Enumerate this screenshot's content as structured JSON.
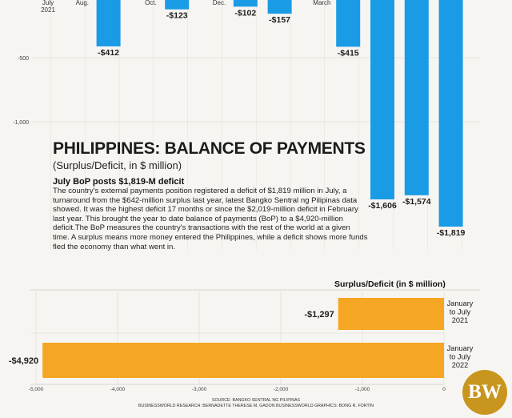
{
  "title": "PHILIPPINES: BALANCE OF PAYMENTS",
  "subtitle": "(Surplus/Deficit, in $ million)",
  "headline": "July BoP posts $1,819-M deficit",
  "body": "The country's external payments position registered a deficit of $1,819 million in July, a turnaround from the $642-million surplus last year, latest Bangko Sentral ng Pilipinas data showed. It was the highest deficit 17 months or since the $2,019-million deficit in February last year. This brought the year to date balance of payments (BoP) to a $4,920-million deficit.The BoP measures the country's transactions with the rest of the world at a given time. A surplus means more money entered the Philippines, while a deficit shows more funds fled the economy than what went in.",
  "bottom_chart_title": "Surplus/Deficit (in $ million)",
  "source": "SOURCE: BANGKO SENTRAL NG PILIPINAS",
  "credits": "BUSINESSWORLD RESEARCH: BERNADETTE THERESE M. GADON    BUSINESSWORLD GRAPHICS: BONG R. FORTIN",
  "logo": "BW",
  "colors": {
    "monthly_bar": "#1a9be6",
    "ytd_bar": "#f5a623"
  },
  "chart_data": [
    {
      "type": "bar",
      "orientation": "vertical",
      "x_tick_labels": [
        {
          "label": "July\n2021",
          "index": 0
        },
        {
          "label": "Aug.",
          "index": 1
        },
        {
          "label": "Oct.",
          "index": 3
        },
        {
          "label": "Dec.",
          "index": 5
        },
        {
          "label": "March",
          "index": 8
        }
      ],
      "y_tick_labels": [
        {
          "label": "-500",
          "value": -500
        },
        {
          "label": "-1,000",
          "value": -1000
        }
      ],
      "ylim": [
        -2000,
        0
      ],
      "grid": true,
      "visible_bars": [
        {
          "index": 2,
          "value": -412,
          "label": "-$412"
        },
        {
          "index": 4,
          "value": -123,
          "label": "-$123"
        },
        {
          "index": 6,
          "value": -102,
          "label": "-$102"
        },
        {
          "index": 7,
          "value": -157,
          "label": "-$157"
        },
        {
          "index": 9,
          "value": -415,
          "label": "-$415"
        },
        {
          "index": 10,
          "value": -1606,
          "label": "-$1,606"
        },
        {
          "index": 11,
          "value": -1574,
          "label": "-$1,574"
        },
        {
          "index": 12,
          "value": -1819,
          "label": "-$1,819"
        }
      ]
    },
    {
      "type": "bar",
      "orientation": "horizontal",
      "title": "Surplus/Deficit (in $ million)",
      "categories": [
        "January\nto July\n2021",
        "January\nto July\n2022"
      ],
      "values": [
        -1297,
        -4920
      ],
      "value_labels": [
        "-$1,297",
        "-$4,920"
      ],
      "xlim": [
        -5000,
        0
      ],
      "x_ticks": [
        {
          "label": "-5,000",
          "value": -5000
        },
        {
          "label": "-4,000",
          "value": -4000
        },
        {
          "label": "-3,000",
          "value": -3000
        },
        {
          "label": "-2,000",
          "value": -2000
        },
        {
          "label": "-1,000",
          "value": -1000
        },
        {
          "label": "0",
          "value": 0
        }
      ],
      "grid": true
    }
  ]
}
